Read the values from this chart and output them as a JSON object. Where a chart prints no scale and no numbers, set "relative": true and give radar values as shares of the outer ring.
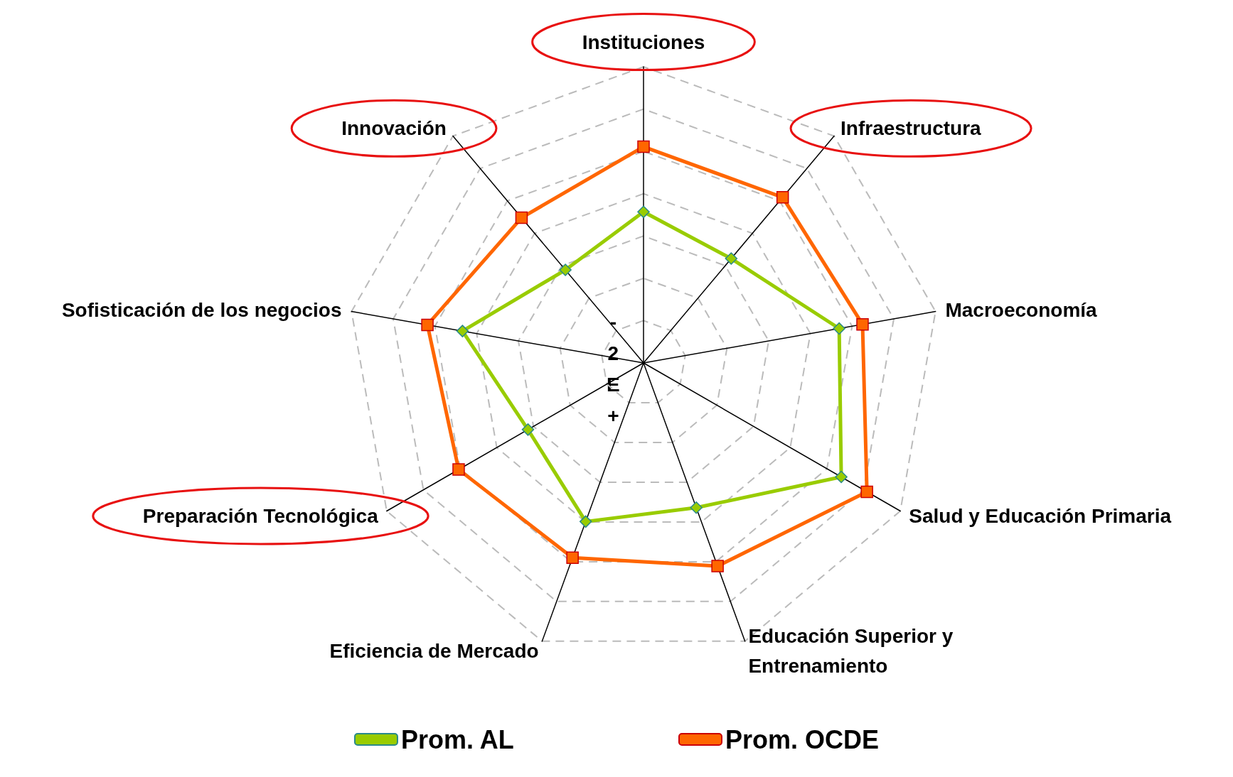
{
  "chart_data": {
    "type": "radar",
    "relative": true,
    "categories": [
      "Instituciones",
      "Infraestructura",
      "Macroeconomía",
      "Salud y Educación Primaria",
      "Educación Superior y\nEntrenamiento",
      "Eficiencia de Mercado",
      "Preparación Tecnológica",
      "Sofisticación de los negocios",
      "Innovación"
    ],
    "series": [
      {
        "name": "Prom. AL",
        "color": "#99cc00",
        "marker": "diamond",
        "values": [
          0.51,
          0.46,
          0.67,
          0.77,
          0.52,
          0.57,
          0.45,
          0.62,
          0.41
        ]
      },
      {
        "name": "Prom. OCDE",
        "color": "#ff6600",
        "marker": "square",
        "values": [
          0.73,
          0.73,
          0.75,
          0.87,
          0.73,
          0.7,
          0.72,
          0.74,
          0.64
        ]
      }
    ],
    "annotations": [
      "-2E+"
    ],
    "legend": "bottom",
    "grid": true
  }
}
